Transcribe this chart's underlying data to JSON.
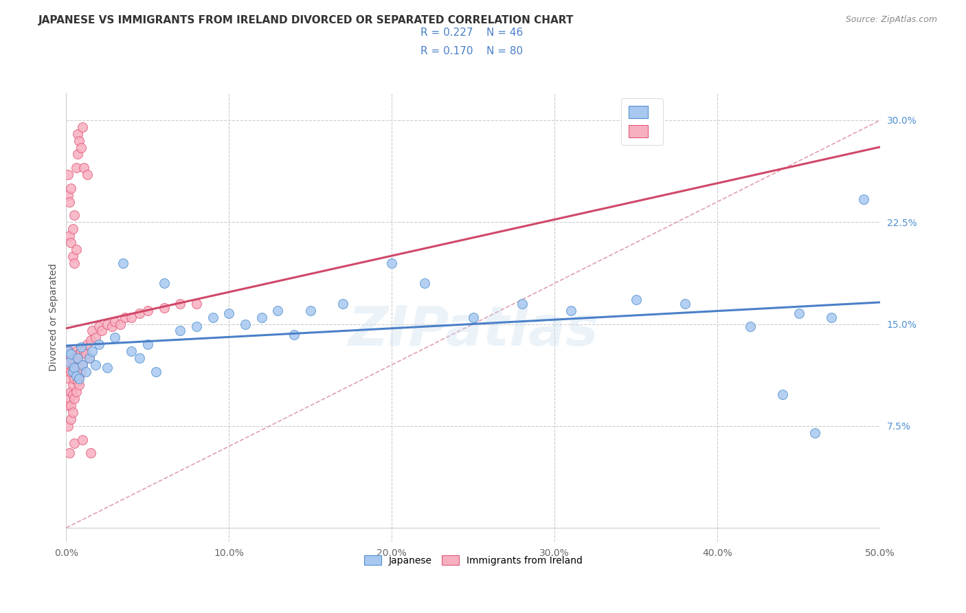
{
  "title": "JAPANESE VS IMMIGRANTS FROM IRELAND DIVORCED OR SEPARATED CORRELATION CHART",
  "source": "Source: ZipAtlas.com",
  "ylabel": "Divorced or Separated",
  "xlim": [
    0.0,
    0.5
  ],
  "ylim": [
    0.0,
    0.32
  ],
  "xticks": [
    0.0,
    0.1,
    0.2,
    0.3,
    0.4,
    0.5
  ],
  "yticks": [
    0.075,
    0.15,
    0.225,
    0.3
  ],
  "xticklabels": [
    "0.0%",
    "10.0%",
    "20.0%",
    "30.0%",
    "40.0%",
    "50.0%"
  ],
  "yticklabels": [
    "7.5%",
    "15.0%",
    "22.5%",
    "30.0%"
  ],
  "watermark": "ZIPatlas",
  "color_japanese": "#a8c8f0",
  "color_ireland": "#f8b0c0",
  "color_edge_japanese": "#5090d0",
  "color_edge_ireland": "#e05878",
  "color_line_japanese": "#4a80c8",
  "color_line_ireland": "#d04868",
  "color_diag": "#e0a0b0",
  "japanese_x": [
    0.001,
    0.002,
    0.003,
    0.004,
    0.005,
    0.006,
    0.007,
    0.008,
    0.009,
    0.01,
    0.012,
    0.014,
    0.016,
    0.018,
    0.02,
    0.025,
    0.03,
    0.035,
    0.04,
    0.045,
    0.05,
    0.055,
    0.06,
    0.07,
    0.08,
    0.09,
    0.1,
    0.11,
    0.12,
    0.13,
    0.14,
    0.15,
    0.17,
    0.2,
    0.22,
    0.25,
    0.28,
    0.31,
    0.35,
    0.38,
    0.42,
    0.45,
    0.47,
    0.49,
    0.44,
    0.46
  ],
  "japanese_y": [
    0.13,
    0.122,
    0.128,
    0.115,
    0.118,
    0.112,
    0.125,
    0.11,
    0.133,
    0.12,
    0.115,
    0.125,
    0.13,
    0.12,
    0.135,
    0.118,
    0.14,
    0.195,
    0.13,
    0.125,
    0.135,
    0.115,
    0.18,
    0.145,
    0.148,
    0.155,
    0.158,
    0.15,
    0.155,
    0.16,
    0.142,
    0.16,
    0.165,
    0.195,
    0.18,
    0.155,
    0.165,
    0.16,
    0.168,
    0.165,
    0.148,
    0.158,
    0.155,
    0.242,
    0.098,
    0.07
  ],
  "ireland_x": [
    0.0,
    0.0,
    0.001,
    0.001,
    0.001,
    0.001,
    0.002,
    0.002,
    0.002,
    0.002,
    0.002,
    0.003,
    0.003,
    0.003,
    0.003,
    0.003,
    0.003,
    0.004,
    0.004,
    0.004,
    0.004,
    0.005,
    0.005,
    0.005,
    0.005,
    0.005,
    0.006,
    0.006,
    0.006,
    0.006,
    0.007,
    0.007,
    0.007,
    0.008,
    0.008,
    0.008,
    0.009,
    0.009,
    0.01,
    0.01,
    0.011,
    0.012,
    0.013,
    0.014,
    0.015,
    0.016,
    0.018,
    0.02,
    0.022,
    0.025,
    0.028,
    0.03,
    0.033,
    0.036,
    0.04,
    0.045,
    0.05,
    0.06,
    0.07,
    0.08,
    0.001,
    0.001,
    0.002,
    0.002,
    0.003,
    0.003,
    0.004,
    0.004,
    0.005,
    0.005,
    0.006,
    0.006,
    0.007,
    0.007,
    0.008,
    0.009,
    0.01,
    0.011,
    0.013,
    0.015
  ],
  "ireland_y": [
    0.13,
    0.118,
    0.125,
    0.09,
    0.115,
    0.075,
    0.11,
    0.12,
    0.095,
    0.13,
    0.055,
    0.08,
    0.1,
    0.115,
    0.128,
    0.09,
    0.125,
    0.085,
    0.105,
    0.118,
    0.098,
    0.11,
    0.095,
    0.125,
    0.115,
    0.062,
    0.12,
    0.1,
    0.13,
    0.115,
    0.108,
    0.125,
    0.118,
    0.112,
    0.128,
    0.105,
    0.115,
    0.13,
    0.12,
    0.065,
    0.13,
    0.128,
    0.135,
    0.125,
    0.138,
    0.145,
    0.14,
    0.148,
    0.145,
    0.15,
    0.148,
    0.152,
    0.15,
    0.155,
    0.155,
    0.158,
    0.16,
    0.162,
    0.165,
    0.165,
    0.245,
    0.26,
    0.215,
    0.24,
    0.21,
    0.25,
    0.2,
    0.22,
    0.23,
    0.195,
    0.205,
    0.265,
    0.275,
    0.29,
    0.285,
    0.28,
    0.295,
    0.265,
    0.26,
    0.055
  ],
  "trend_jap_x0": 0.0,
  "trend_jap_x1": 0.5,
  "trend_jap_y0": 0.128,
  "trend_jap_y1": 0.172,
  "trend_ire_x0": 0.0,
  "trend_ire_x1": 0.08,
  "trend_ire_y0": 0.118,
  "trend_ire_y1": 0.17
}
